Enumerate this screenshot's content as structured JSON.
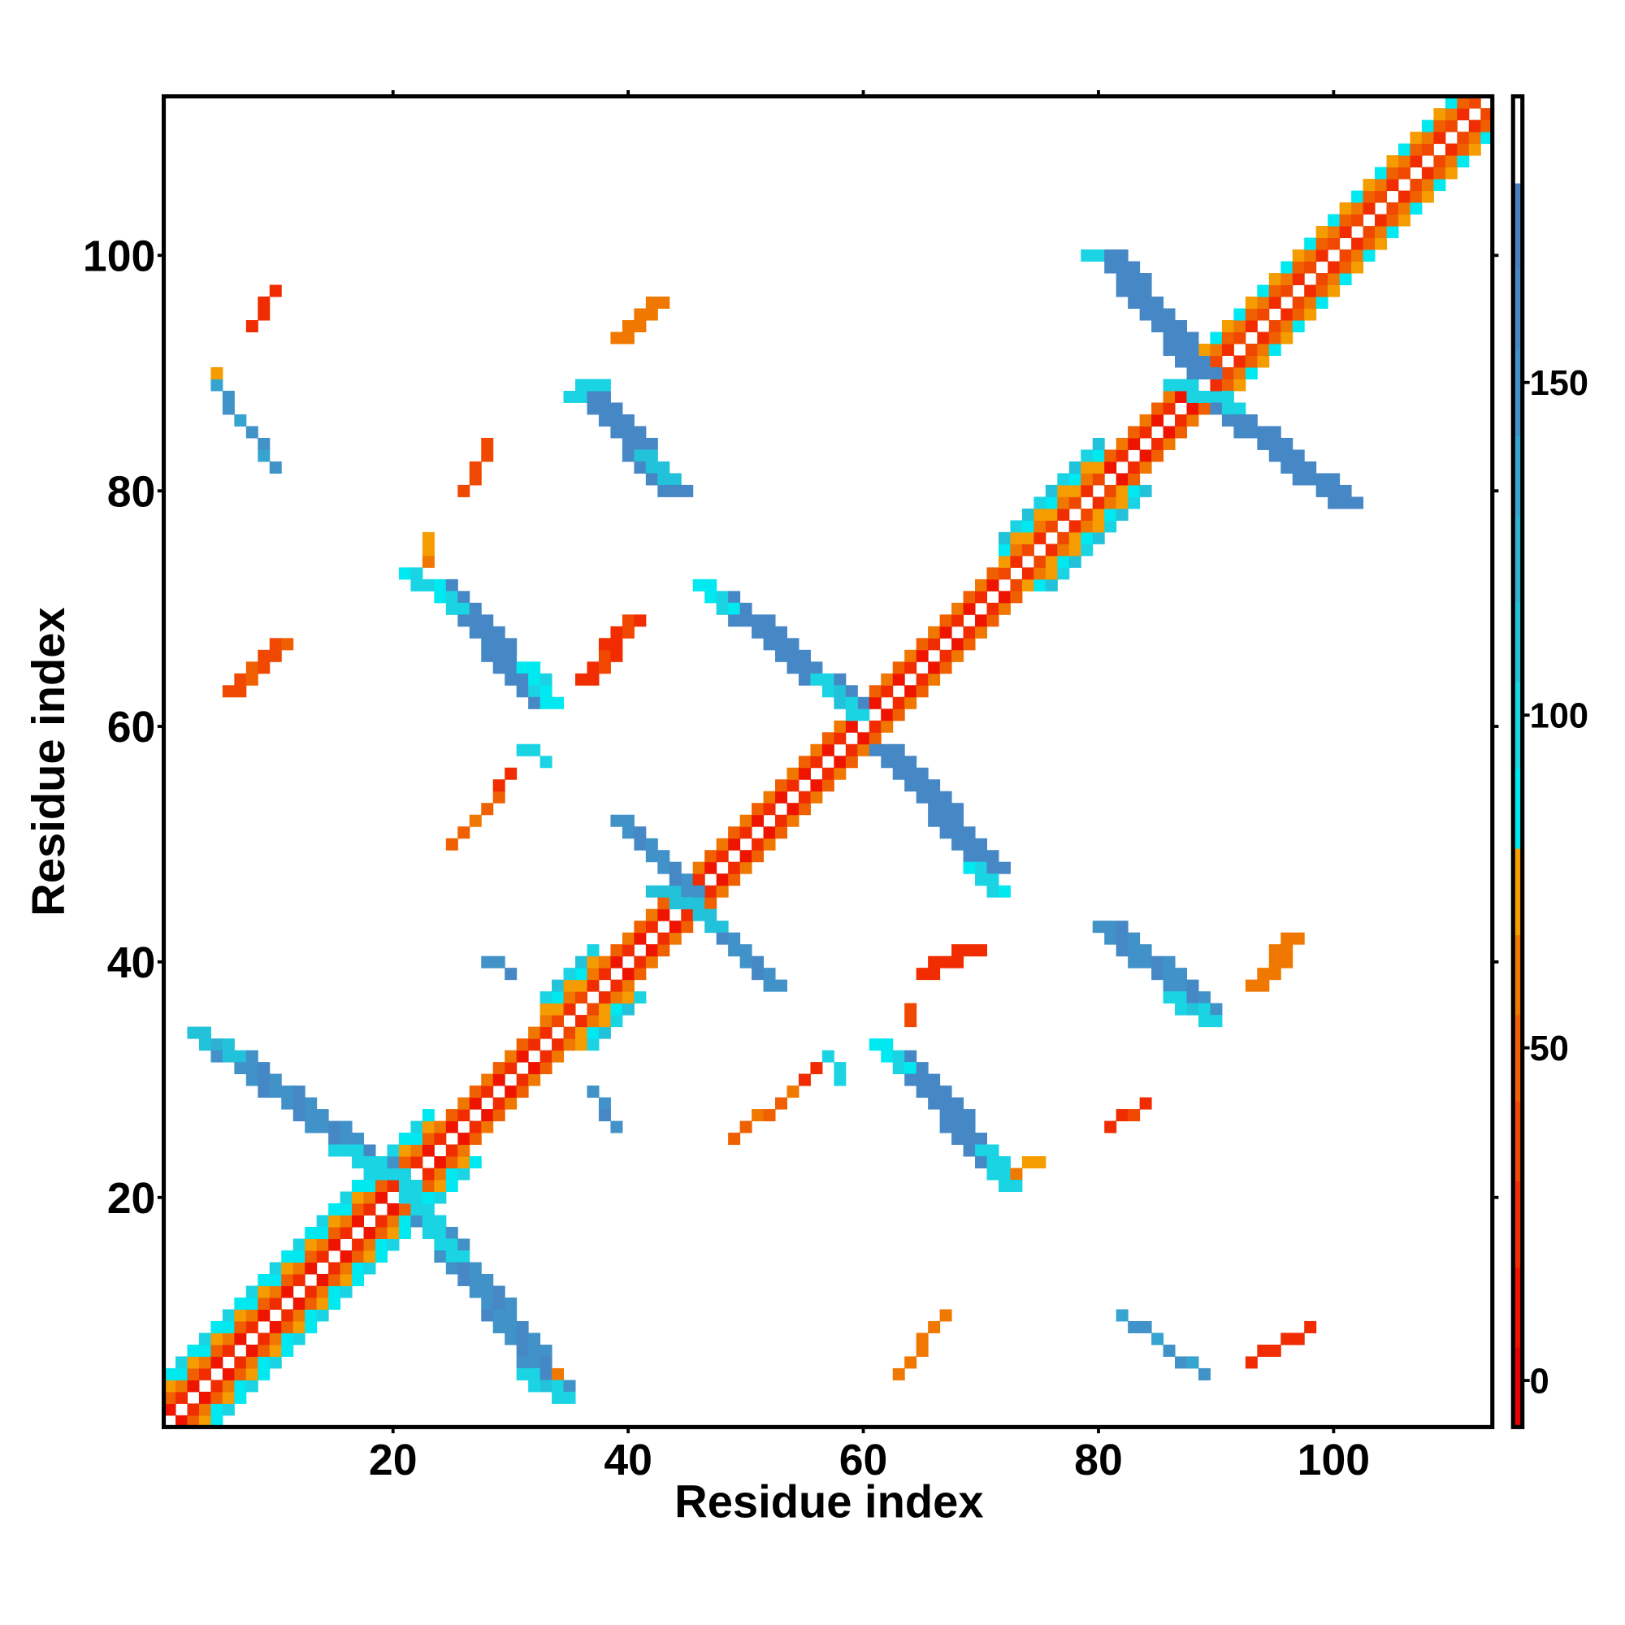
{
  "chart_data": {
    "type": "heatmap",
    "title": "",
    "xlabel": "Residue index",
    "ylabel": "Residue index",
    "xlim": [
      0.5,
      113.5
    ],
    "ylim": [
      0.5,
      113.5
    ],
    "xticks": [
      20,
      40,
      60,
      80,
      100
    ],
    "yticks": [
      20,
      40,
      60,
      80,
      100
    ],
    "colorbar": {
      "range": [
        -7,
        193
      ],
      "ticks": [
        0,
        50,
        100,
        150
      ],
      "bands": [
        [
          -7,
          "#e80000"
        ],
        [
          5,
          "#ee1400"
        ],
        [
          17,
          "#f02c00"
        ],
        [
          30,
          "#f04800"
        ],
        [
          42,
          "#f06000"
        ],
        [
          55,
          "#f07800"
        ],
        [
          67,
          "#f59c00"
        ],
        [
          80,
          "#00e8f0"
        ],
        [
          92,
          "#1ad4e4"
        ],
        [
          105,
          "#22c2da"
        ],
        [
          117,
          "#2eb2d2"
        ],
        [
          130,
          "#36a4d0"
        ],
        [
          142,
          "#4092c8"
        ],
        [
          155,
          "#4688c6"
        ],
        [
          167,
          "#4a80c2"
        ],
        [
          180,
          "#ffffff"
        ]
      ]
    },
    "diagonal_regions": [
      {
        "from": 1,
        "to": 23,
        "offsets": {
          "1": 10,
          "2": 50,
          "3": 70,
          "4": 90
        }
      },
      {
        "from": 24,
        "to": 32,
        "offsets": {
          "1": 5,
          "2": 45
        }
      },
      {
        "from": 33,
        "to": 37,
        "offsets": {
          "1": 20,
          "2": 55,
          "3": 75,
          "4": 95
        }
      },
      {
        "from": 38,
        "to": 61,
        "offsets": {
          "1": 5,
          "2": 45
        }
      },
      {
        "from": 62,
        "to": 71,
        "offsets": {
          "1": 5,
          "2": 45
        }
      },
      {
        "from": 72,
        "to": 80,
        "offsets": {
          "1": 20,
          "2": 55,
          "3": 75,
          "4": 95
        }
      },
      {
        "from": 81,
        "to": 88,
        "offsets": {
          "1": 5,
          "2": 45
        }
      },
      {
        "from": 89,
        "to": 113,
        "offsets": {
          "1": 20,
          "2": 50,
          "3": 70
        }
      }
    ],
    "strips": [
      {
        "from": [
          4,
          33
        ],
        "to": [
          19,
          22
        ],
        "width": 3,
        "value": 150
      },
      {
        "from": [
          3,
          34
        ],
        "to": [
          6,
          32
        ],
        "width": 2,
        "value": 110
      },
      {
        "from": [
          15,
          24
        ],
        "to": [
          21,
          21
        ],
        "width": 2,
        "value": 95
      },
      {
        "from": [
          22,
          18
        ],
        "to": [
          33,
          4
        ],
        "width": 3,
        "value": 150
      },
      {
        "from": [
          21,
          20
        ],
        "to": [
          25,
          15
        ],
        "width": 2,
        "value": 95
      },
      {
        "from": [
          31,
          5
        ],
        "to": [
          34,
          3
        ],
        "width": 2,
        "value": 100
      },
      {
        "from": [
          23,
          72
        ],
        "to": [
          32,
          62
        ],
        "width": 3,
        "value": 155
      },
      {
        "from": [
          21,
          73
        ],
        "to": [
          25,
          70
        ],
        "width": 2,
        "value": 90
      },
      {
        "from": [
          31,
          65
        ],
        "to": [
          33,
          62
        ],
        "width": 2,
        "value": 85
      },
      {
        "from": [
          62,
          32
        ],
        "to": [
          71,
          22
        ],
        "width": 3,
        "value": 155
      },
      {
        "from": [
          61,
          33
        ],
        "to": [
          63,
          31
        ],
        "width": 2,
        "value": 85
      },
      {
        "from": [
          70,
          24
        ],
        "to": [
          72,
          21
        ],
        "width": 2,
        "value": 95
      },
      {
        "from": [
          47,
          71
        ],
        "to": [
          58,
          62
        ],
        "width": 3,
        "value": 155
      },
      {
        "from": [
          46,
          72
        ],
        "to": [
          48,
          70
        ],
        "width": 2,
        "value": 85
      },
      {
        "from": [
          56,
          64
        ],
        "to": [
          59,
          61
        ],
        "width": 2,
        "value": 100
      },
      {
        "from": [
          61,
          58
        ],
        "to": [
          70,
          48
        ],
        "width": 3,
        "value": 155
      },
      {
        "from": [
          69,
          48
        ],
        "to": [
          71,
          46
        ],
        "width": 2,
        "value": 90
      },
      {
        "from": [
          39,
          52
        ],
        "to": [
          45,
          46
        ],
        "width": 2,
        "value": 150
      },
      {
        "from": [
          42,
          46
        ],
        "to": [
          45,
          45
        ],
        "width": 2,
        "value": 105
      },
      {
        "from": [
          46,
          44
        ],
        "to": [
          52,
          38
        ],
        "width": 2,
        "value": 150
      },
      {
        "from": [
          45,
          45
        ],
        "to": [
          47,
          43
        ],
        "width": 2,
        "value": 105
      },
      {
        "from": [
          80,
          100
        ],
        "to": [
          88,
          90
        ],
        "width": 3,
        "value": 155
      },
      {
        "from": [
          79,
          100
        ],
        "to": [
          80,
          100
        ],
        "width": 1,
        "value": 95
      },
      {
        "from": [
          86,
          89
        ],
        "to": [
          88,
          88
        ],
        "width": 2,
        "value": 95
      },
      {
        "from": [
          90,
          87
        ],
        "to": [
          100,
          79
        ],
        "width": 3,
        "value": 155
      },
      {
        "from": [
          89,
          88
        ],
        "to": [
          91,
          87
        ],
        "width": 2,
        "value": 95
      },
      {
        "from": [
          36,
          88
        ],
        "to": [
          43,
          80
        ],
        "width": 3,
        "value": 155
      },
      {
        "from": [
          35,
          88
        ],
        "to": [
          37,
          89
        ],
        "width": 2,
        "value": 95
      },
      {
        "from": [
          41,
          83
        ],
        "to": [
          43,
          81
        ],
        "width": 2,
        "value": 105
      },
      {
        "from": [
          80,
          43
        ],
        "to": [
          88,
          36
        ],
        "width": 3,
        "value": 150
      },
      {
        "from": [
          86,
          37
        ],
        "to": [
          89,
          35
        ],
        "width": 2,
        "value": 100
      },
      {
        "from": [
          5,
          89
        ],
        "to": [
          10,
          82
        ],
        "width": 1,
        "value": 140
      },
      {
        "from": [
          82,
          10
        ],
        "to": [
          89,
          5
        ],
        "width": 1,
        "value": 140
      },
      {
        "from": [
          28,
          40
        ],
        "to": [
          30,
          39
        ],
        "width": 1,
        "value": 150
      },
      {
        "from": [
          37,
          29
        ],
        "to": [
          39,
          26
        ],
        "width": 1,
        "value": 150
      },
      {
        "from": [
          31,
          58
        ],
        "to": [
          33,
          57
        ],
        "width": 1,
        "value": 95
      },
      {
        "from": [
          57,
          32
        ],
        "to": [
          58,
          30
        ],
        "width": 1,
        "value": 95
      },
      {
        "from": [
          5,
          90
        ],
        "to": [
          5,
          90
        ],
        "width": 1,
        "value": 70
      },
      {
        "from": [
          8,
          94
        ],
        "to": [
          10,
          97
        ],
        "width": 1,
        "value": 20
      },
      {
        "from": [
          39,
          93
        ],
        "to": [
          42,
          96
        ],
        "width": 2,
        "value": 55
      },
      {
        "from": [
          26,
          80
        ],
        "to": [
          28,
          84
        ],
        "width": 1,
        "value": 30
      },
      {
        "from": [
          6,
          63
        ],
        "to": [
          10,
          67
        ],
        "width": 2,
        "value": 35
      },
      {
        "from": [
          36,
          64
        ],
        "to": [
          40,
          69
        ],
        "width": 2,
        "value": 25
      },
      {
        "from": [
          23,
          74
        ],
        "to": [
          23,
          76
        ],
        "width": 1,
        "value": 65
      },
      {
        "from": [
          25,
          50
        ],
        "to": [
          29,
          54
        ],
        "width": 1,
        "value": 50
      },
      {
        "from": [
          29,
          55
        ],
        "to": [
          30,
          56
        ],
        "width": 1,
        "value": 25
      },
      {
        "from": [
          65,
          39
        ],
        "to": [
          69,
          41
        ],
        "width": 2,
        "value": 20
      },
      {
        "from": [
          64,
          35
        ],
        "to": [
          64,
          36
        ],
        "width": 1,
        "value": 30
      },
      {
        "from": [
          49,
          25
        ],
        "to": [
          54,
          29
        ],
        "width": 1,
        "value": 50
      },
      {
        "from": [
          55,
          30
        ],
        "to": [
          56,
          31
        ],
        "width": 1,
        "value": 20
      },
      {
        "from": [
          81,
          26
        ],
        "to": [
          84,
          28
        ],
        "width": 1,
        "value": 25
      },
      {
        "from": [
          93,
          38
        ],
        "to": [
          96,
          42
        ],
        "width": 2,
        "value": 55
      },
      {
        "from": [
          63,
          5
        ],
        "to": [
          67,
          10
        ],
        "width": 1,
        "value": 55
      },
      {
        "from": [
          93,
          6
        ],
        "to": [
          98,
          9
        ],
        "width": 1,
        "value": 20
      },
      {
        "from": [
          73,
          22
        ],
        "to": [
          75,
          23
        ],
        "width": 1,
        "value": 65
      },
      {
        "from": [
          34,
          5
        ],
        "to": [
          34,
          5
        ],
        "width": 1,
        "value": 60
      }
    ]
  }
}
